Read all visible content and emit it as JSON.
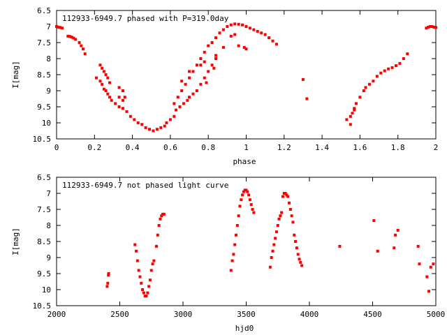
{
  "colors": {
    "marker": "#ff0000",
    "axis": "#000000",
    "background": "#ffffff"
  },
  "chart_data": [
    {
      "type": "scatter",
      "title": "112933-6949.7 phased with P=319.0day",
      "xlabel": "phase",
      "ylabel": "I[mag]",
      "xlim": [
        0,
        2
      ],
      "ylim": [
        10.5,
        6.5
      ],
      "y_inverted": true,
      "xticks": [
        "0",
        "0.2",
        "0.4",
        "0.6",
        "0.8",
        "1",
        "1.2",
        "1.4",
        "1.6",
        "1.8",
        "2"
      ],
      "yticks": [
        "6.5",
        "7",
        "7.5",
        "8",
        "8.5",
        "9",
        "9.5",
        "10",
        "10.5"
      ],
      "grid": false,
      "series": [
        {
          "color": "#ff0000",
          "points": [
            [
              0.0,
              7.0
            ],
            [
              0.01,
              7.02
            ],
            [
              0.02,
              7.03
            ],
            [
              0.03,
              7.05
            ],
            [
              0.06,
              7.3
            ],
            [
              0.07,
              7.31
            ],
            [
              0.08,
              7.33
            ],
            [
              0.09,
              7.36
            ],
            [
              0.1,
              7.4
            ],
            [
              0.12,
              7.5
            ],
            [
              0.13,
              7.6
            ],
            [
              0.14,
              7.7
            ],
            [
              0.15,
              7.85
            ],
            [
              0.21,
              8.6
            ],
            [
              0.23,
              8.7
            ],
            [
              0.23,
              8.2
            ],
            [
              0.24,
              8.3
            ],
            [
              0.25,
              8.4
            ],
            [
              0.26,
              8.5
            ],
            [
              0.27,
              8.6
            ],
            [
              0.28,
              8.75
            ],
            [
              0.24,
              8.8
            ],
            [
              0.25,
              8.95
            ],
            [
              0.26,
              9.0
            ],
            [
              0.27,
              9.1
            ],
            [
              0.28,
              9.2
            ],
            [
              0.29,
              9.3
            ],
            [
              0.31,
              9.4
            ],
            [
              0.33,
              9.5
            ],
            [
              0.35,
              9.55
            ],
            [
              0.37,
              9.65
            ],
            [
              0.39,
              9.8
            ],
            [
              0.41,
              9.9
            ],
            [
              0.43,
              10.0
            ],
            [
              0.45,
              10.05
            ],
            [
              0.47,
              10.15
            ],
            [
              0.49,
              10.2
            ],
            [
              0.51,
              10.25
            ],
            [
              0.53,
              10.2
            ],
            [
              0.55,
              10.15
            ],
            [
              0.57,
              10.1
            ],
            [
              0.33,
              8.9
            ],
            [
              0.35,
              9.0
            ],
            [
              0.36,
              9.2
            ],
            [
              0.33,
              9.2
            ],
            [
              0.35,
              9.3
            ],
            [
              0.58,
              10.0
            ],
            [
              0.6,
              9.9
            ],
            [
              0.62,
              9.8
            ],
            [
              0.63,
              9.6
            ],
            [
              0.65,
              9.5
            ],
            [
              0.67,
              9.4
            ],
            [
              0.69,
              9.3
            ],
            [
              0.7,
              9.2
            ],
            [
              0.72,
              9.1
            ],
            [
              0.74,
              9.0
            ],
            [
              0.76,
              8.8
            ],
            [
              0.78,
              8.6
            ],
            [
              0.8,
              8.4
            ],
            [
              0.82,
              8.2
            ],
            [
              0.84,
              8.0
            ],
            [
              0.62,
              9.4
            ],
            [
              0.64,
              9.2
            ],
            [
              0.66,
              9.0
            ],
            [
              0.68,
              8.8
            ],
            [
              0.7,
              8.6
            ],
            [
              0.72,
              8.4
            ],
            [
              0.74,
              8.2
            ],
            [
              0.76,
              8.0
            ],
            [
              0.78,
              7.8
            ],
            [
              0.8,
              7.6
            ],
            [
              0.82,
              7.5
            ],
            [
              0.84,
              7.35
            ],
            [
              0.86,
              7.2
            ],
            [
              0.88,
              7.1
            ],
            [
              0.9,
              7.0
            ],
            [
              0.92,
              6.95
            ],
            [
              0.94,
              6.92
            ],
            [
              0.96,
              6.93
            ],
            [
              0.98,
              6.95
            ],
            [
              1.0,
              7.0
            ],
            [
              1.02,
              7.05
            ],
            [
              1.04,
              7.1
            ],
            [
              1.06,
              7.15
            ],
            [
              1.08,
              7.2
            ],
            [
              1.1,
              7.25
            ],
            [
              1.12,
              7.35
            ],
            [
              1.14,
              7.45
            ],
            [
              1.16,
              7.55
            ],
            [
              0.66,
              8.7
            ],
            [
              0.7,
              8.4
            ],
            [
              0.76,
              8.2
            ],
            [
              0.78,
              8.1
            ],
            [
              0.79,
              8.75
            ],
            [
              0.83,
              8.3
            ],
            [
              0.84,
              7.9
            ],
            [
              0.88,
              7.65
            ],
            [
              0.96,
              7.6
            ],
            [
              0.99,
              7.65
            ],
            [
              1.0,
              7.7
            ],
            [
              0.92,
              7.3
            ],
            [
              0.94,
              7.25
            ],
            [
              1.3,
              8.65
            ],
            [
              1.32,
              9.25
            ],
            [
              1.53,
              9.9
            ],
            [
              1.55,
              9.8
            ],
            [
              1.56,
              9.7
            ],
            [
              1.57,
              9.6
            ],
            [
              1.58,
              9.4
            ],
            [
              1.6,
              9.2
            ],
            [
              1.62,
              9.0
            ],
            [
              1.63,
              8.9
            ],
            [
              1.65,
              8.8
            ],
            [
              1.67,
              8.7
            ],
            [
              1.69,
              8.55
            ],
            [
              1.71,
              8.45
            ],
            [
              1.73,
              8.38
            ],
            [
              1.75,
              8.32
            ],
            [
              1.77,
              8.28
            ],
            [
              1.79,
              8.22
            ],
            [
              1.81,
              8.15
            ],
            [
              1.83,
              8.0
            ],
            [
              1.85,
              7.85
            ],
            [
              1.55,
              10.05
            ],
            [
              1.57,
              9.55
            ],
            [
              1.95,
              7.05
            ],
            [
              1.96,
              7.02
            ],
            [
              1.97,
              7.0
            ],
            [
              1.98,
              7.0
            ],
            [
              1.99,
              7.02
            ],
            [
              2.0,
              7.03
            ]
          ]
        }
      ]
    },
    {
      "type": "scatter",
      "title": "112933-6949.7 not phased light curve",
      "xlabel": "hjd0",
      "ylabel": "I[mag]",
      "xlim": [
        2000,
        5000
      ],
      "ylim": [
        10.5,
        6.5
      ],
      "y_inverted": true,
      "xticks": [
        "2000",
        "2500",
        "3000",
        "3500",
        "4000",
        "4500",
        "5000"
      ],
      "yticks": [
        "6.5",
        "7",
        "7.5",
        "8",
        "8.5",
        "9",
        "9.5",
        "10",
        "10.5"
      ],
      "grid": false,
      "series": [
        {
          "color": "#ff0000",
          "points": [
            [
              2400,
              9.9
            ],
            [
              2405,
              9.8
            ],
            [
              2410,
              9.55
            ],
            [
              2412,
              9.5
            ],
            [
              2620,
              8.6
            ],
            [
              2630,
              8.8
            ],
            [
              2640,
              9.1
            ],
            [
              2650,
              9.4
            ],
            [
              2660,
              9.6
            ],
            [
              2670,
              9.8
            ],
            [
              2680,
              10.0
            ],
            [
              2690,
              10.1
            ],
            [
              2700,
              10.2
            ],
            [
              2710,
              10.2
            ],
            [
              2720,
              10.1
            ],
            [
              2730,
              9.9
            ],
            [
              2740,
              9.7
            ],
            [
              2750,
              9.4
            ],
            [
              2760,
              9.2
            ],
            [
              2770,
              9.1
            ],
            [
              2790,
              8.65
            ],
            [
              2800,
              8.3
            ],
            [
              2810,
              8.0
            ],
            [
              2820,
              7.8
            ],
            [
              2830,
              7.7
            ],
            [
              2840,
              7.65
            ],
            [
              2850,
              7.65
            ],
            [
              3380,
              9.4
            ],
            [
              3390,
              9.1
            ],
            [
              3400,
              8.9
            ],
            [
              3410,
              8.6
            ],
            [
              3420,
              8.3
            ],
            [
              3430,
              8.0
            ],
            [
              3440,
              7.7
            ],
            [
              3450,
              7.4
            ],
            [
              3460,
              7.2
            ],
            [
              3470,
              7.05
            ],
            [
              3480,
              6.95
            ],
            [
              3490,
              6.9
            ],
            [
              3500,
              6.9
            ],
            [
              3510,
              6.95
            ],
            [
              3520,
              7.05
            ],
            [
              3530,
              7.2
            ],
            [
              3540,
              7.35
            ],
            [
              3550,
              7.5
            ],
            [
              3560,
              7.6
            ],
            [
              3690,
              9.3
            ],
            [
              3700,
              9.0
            ],
            [
              3710,
              8.8
            ],
            [
              3720,
              8.6
            ],
            [
              3730,
              8.4
            ],
            [
              3740,
              8.2
            ],
            [
              3750,
              8.0
            ],
            [
              3760,
              7.8
            ],
            [
              3770,
              7.7
            ],
            [
              3780,
              7.6
            ],
            [
              3790,
              7.1
            ],
            [
              3800,
              7.0
            ],
            [
              3810,
              7.0
            ],
            [
              3820,
              7.05
            ],
            [
              3830,
              7.1
            ],
            [
              3840,
              7.3
            ],
            [
              3850,
              7.5
            ],
            [
              3860,
              7.7
            ],
            [
              3870,
              7.9
            ],
            [
              3880,
              8.3
            ],
            [
              3890,
              8.5
            ],
            [
              3900,
              8.7
            ],
            [
              3910,
              8.9
            ],
            [
              3920,
              9.05
            ],
            [
              3930,
              9.15
            ],
            [
              3940,
              9.25
            ],
            [
              4240,
              8.65
            ],
            [
              4510,
              7.85
            ],
            [
              4540,
              8.8
            ],
            [
              4670,
              8.7
            ],
            [
              4680,
              8.3
            ],
            [
              4700,
              8.15
            ],
            [
              4860,
              8.65
            ],
            [
              4870,
              9.2
            ],
            [
              4930,
              9.6
            ],
            [
              4945,
              10.05
            ],
            [
              4960,
              9.3
            ],
            [
              4980,
              9.2
            ]
          ]
        }
      ]
    }
  ]
}
